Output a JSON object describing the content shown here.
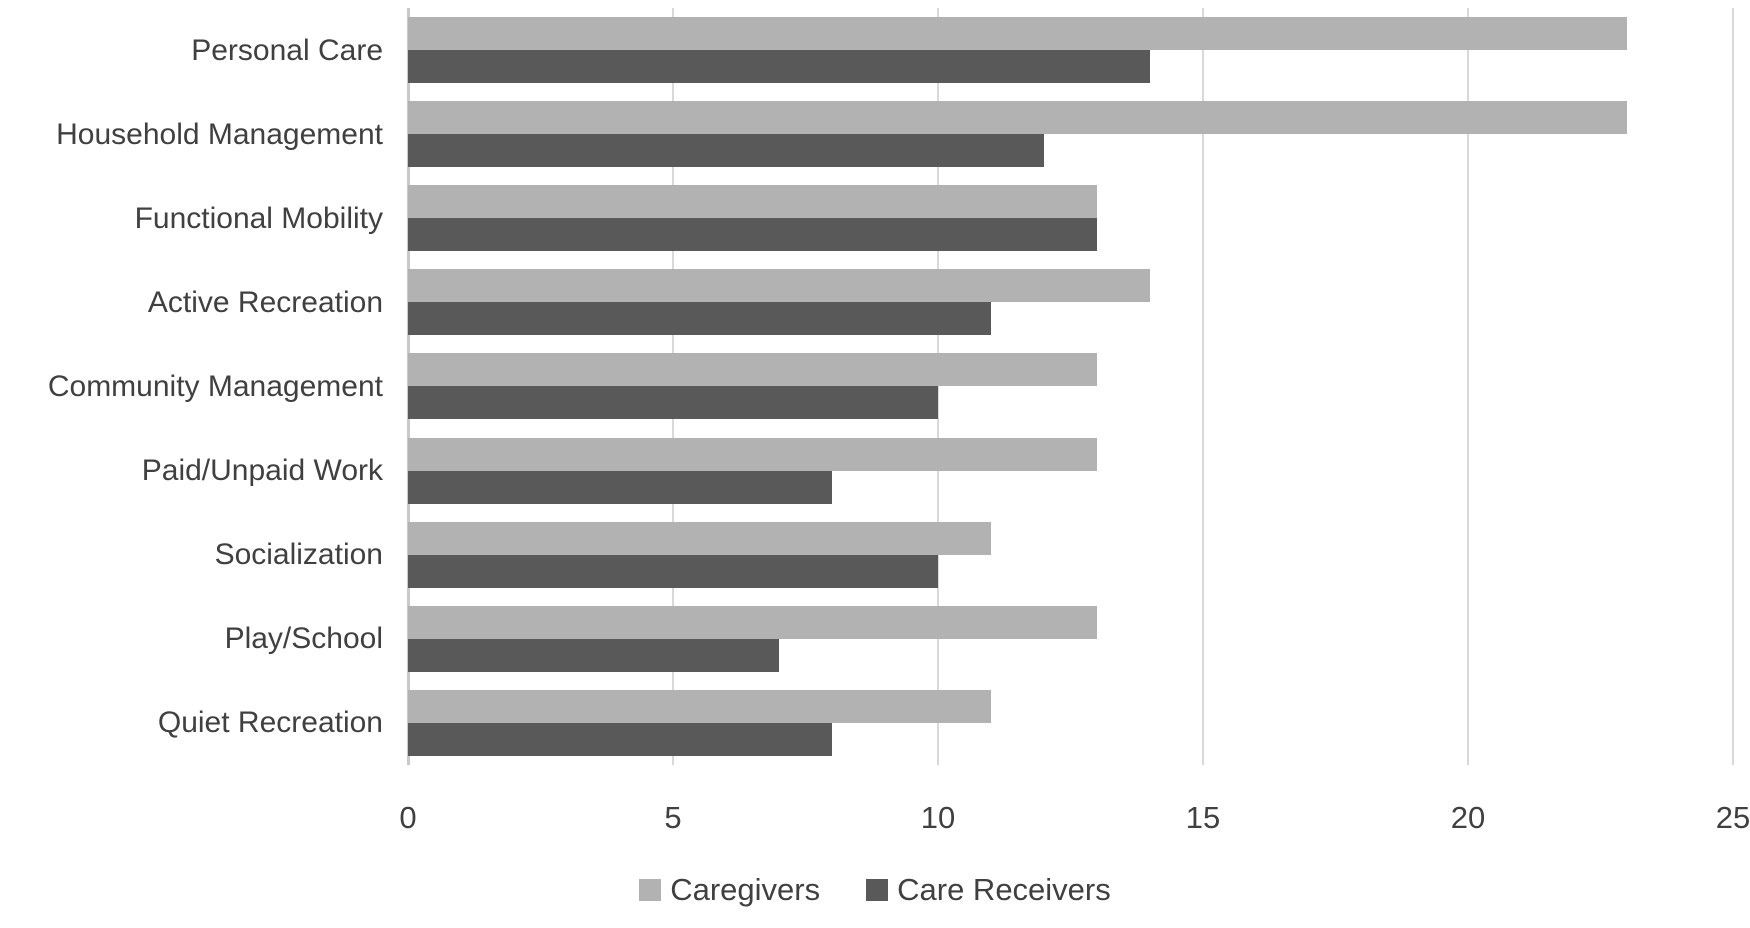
{
  "chart_data": {
    "type": "bar",
    "orientation": "horizontal",
    "title": "",
    "xlabel": "",
    "ylabel": "",
    "categories": [
      "Personal Care",
      "Household Management",
      "Functional Mobility",
      "Active Recreation",
      "Community Management",
      "Paid/Unpaid Work",
      "Socialization",
      "Play/School",
      "Quiet Recreation"
    ],
    "series": [
      {
        "name": "Caregivers",
        "color": "#b2b2b2",
        "values": [
          23,
          23,
          13,
          14,
          13,
          13,
          11,
          13,
          11
        ]
      },
      {
        "name": "Care Receivers",
        "color": "#595959",
        "values": [
          14,
          12,
          13,
          11,
          10,
          8,
          10,
          7,
          8
        ]
      }
    ],
    "xlim": [
      0,
      25
    ],
    "xticks": [
      0,
      5,
      10,
      15,
      20,
      25
    ],
    "grid": "vertical-only",
    "legend_position": "bottom-center"
  },
  "colors": {
    "background": "#ffffff",
    "gridline": "#d9d9d9",
    "axis_line": "#c9c9c9",
    "text": "#404040"
  }
}
